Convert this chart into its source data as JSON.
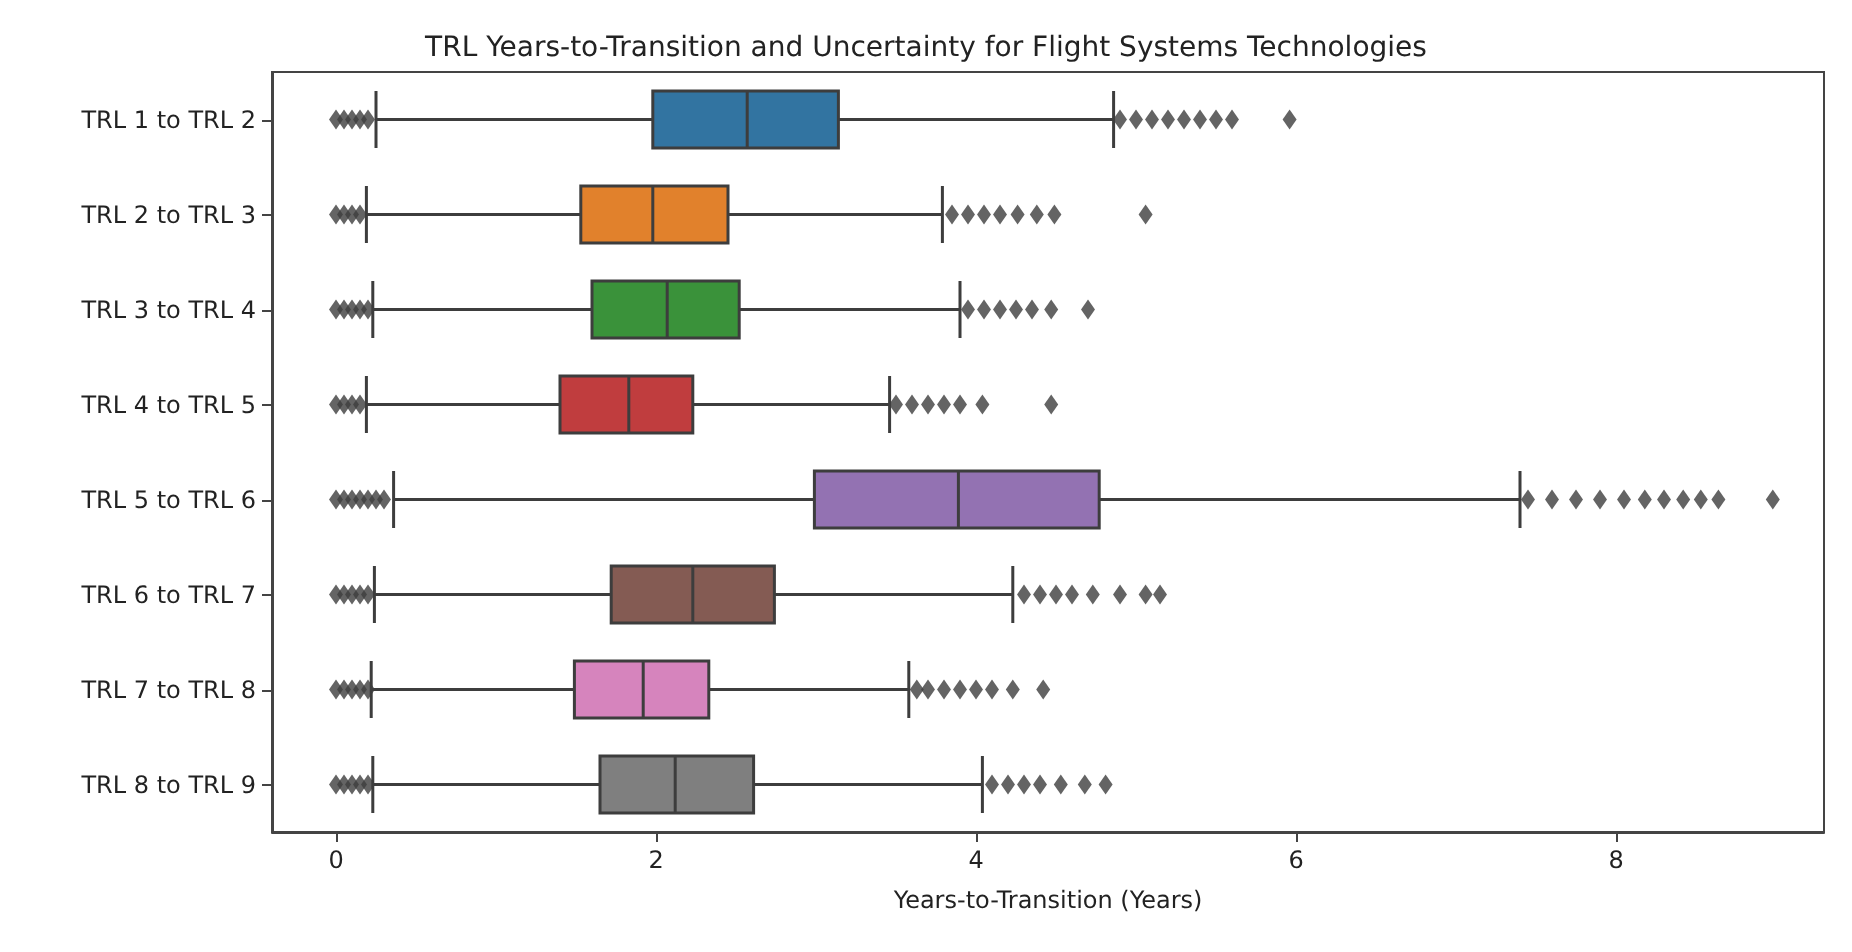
{
  "chart_data": {
    "type": "box",
    "orientation": "horizontal",
    "title": "TRL Years-to-Transition and Uncertainty for Flight Systems Technologies",
    "xlabel": "Years-to-Transition (Years)",
    "categories": [
      "TRL 1 to TRL 2",
      "TRL 2 to TRL 3",
      "TRL 3 to TRL 4",
      "TRL 4 to TRL 5",
      "TRL 5 to TRL 6",
      "TRL 6 to TRL 7",
      "TRL 7 to TRL 8",
      "TRL 8 to TRL 9"
    ],
    "colors": [
      "#3274a1",
      "#e1812c",
      "#3a923a",
      "#c03d3e",
      "#9372b2",
      "#845b53",
      "#d684bd",
      "#7f7f7f"
    ],
    "boxes": [
      {
        "low": 0.25,
        "q1": 1.98,
        "median": 2.57,
        "q3": 3.14,
        "high": 4.86,
        "outliers": [
          0,
          0.05,
          0.1,
          0.15,
          0.2,
          4.9,
          5.0,
          5.1,
          5.2,
          5.3,
          5.4,
          5.5,
          5.6,
          5.96
        ]
      },
      {
        "low": 0.19,
        "q1": 1.53,
        "median": 1.98,
        "q3": 2.45,
        "high": 3.79,
        "outliers": [
          0,
          0.05,
          0.1,
          0.15,
          3.85,
          3.95,
          4.05,
          4.15,
          4.26,
          4.38,
          4.49,
          5.06
        ]
      },
      {
        "low": 0.23,
        "q1": 1.6,
        "median": 2.07,
        "q3": 2.52,
        "high": 3.9,
        "outliers": [
          0,
          0.05,
          0.1,
          0.15,
          0.2,
          3.95,
          4.05,
          4.15,
          4.25,
          4.35,
          4.47,
          4.7
        ]
      },
      {
        "low": 0.19,
        "q1": 1.4,
        "median": 1.83,
        "q3": 2.23,
        "high": 3.46,
        "outliers": [
          0,
          0.05,
          0.1,
          0.15,
          3.5,
          3.6,
          3.7,
          3.8,
          3.9,
          4.04,
          4.47
        ]
      },
      {
        "low": 0.36,
        "q1": 2.99,
        "median": 3.89,
        "q3": 4.77,
        "high": 7.4,
        "outliers": [
          0,
          0.05,
          0.1,
          0.15,
          0.2,
          0.25,
          0.3,
          7.45,
          7.6,
          7.75,
          7.9,
          8.05,
          8.18,
          8.3,
          8.42,
          8.53,
          8.64,
          8.98
        ]
      },
      {
        "low": 0.24,
        "q1": 1.72,
        "median": 2.23,
        "q3": 2.74,
        "high": 4.23,
        "outliers": [
          0,
          0.05,
          0.1,
          0.15,
          0.2,
          4.3,
          4.4,
          4.5,
          4.6,
          4.73,
          4.9,
          5.06,
          5.15
        ]
      },
      {
        "low": 0.22,
        "q1": 1.49,
        "median": 1.92,
        "q3": 2.33,
        "high": 3.58,
        "outliers": [
          0,
          0.05,
          0.1,
          0.15,
          0.2,
          3.63,
          3.7,
          3.8,
          3.9,
          4.0,
          4.1,
          4.23,
          4.42
        ]
      },
      {
        "low": 0.23,
        "q1": 1.65,
        "median": 2.12,
        "q3": 2.61,
        "high": 4.04,
        "outliers": [
          0,
          0.05,
          0.1,
          0.15,
          0.2,
          4.1,
          4.2,
          4.3,
          4.4,
          4.53,
          4.68,
          4.81
        ]
      }
    ],
    "xlim": [
      -0.4,
      9.3
    ],
    "xticks": [
      0,
      2,
      4,
      6,
      8
    ],
    "grid": false,
    "marker": "diamond"
  }
}
